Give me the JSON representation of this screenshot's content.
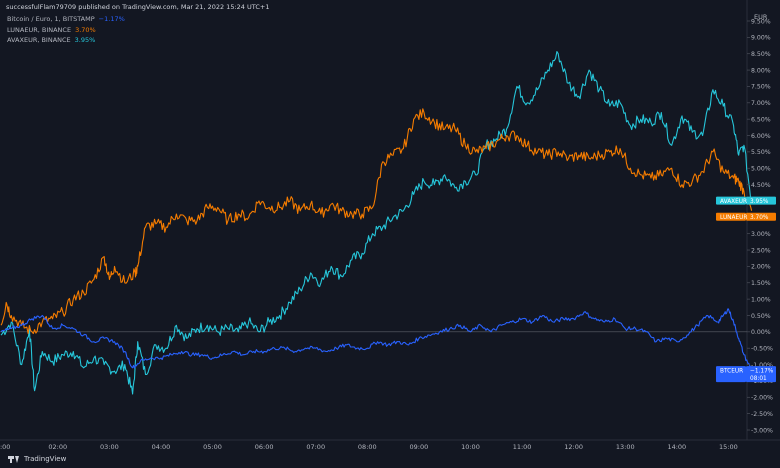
{
  "header": {
    "text": "successfulFlam79709 published on TradingView.com, Mar 21, 2022 15:24 UTC+1"
  },
  "legend": [
    {
      "label": "Bitcoin / Euro, 1, BITSTAMP",
      "change": "−1.17%",
      "color": "#2962ff"
    },
    {
      "label": "LUNAEUR, BINANCE",
      "change": "3.70%",
      "color": "#f57c00"
    },
    {
      "label": "AVAXEUR, BINANCE",
      "change": "3.95%",
      "color": "#26c6da"
    }
  ],
  "footer": {
    "brand": "TradingView"
  },
  "chart_data": {
    "type": "line",
    "yunit": "percent",
    "ylim": [
      -3.0,
      9.5
    ],
    "currency_label": "EUR",
    "y_ticks": [
      "9.50%",
      "9.00%",
      "8.50%",
      "8.00%",
      "7.50%",
      "7.00%",
      "6.50%",
      "6.00%",
      "5.50%",
      "5.00%",
      "4.50%",
      "4.00%",
      "3.50%",
      "3.00%",
      "2.50%",
      "2.00%",
      "1.50%",
      "1.00%",
      "0.50%",
      "0.00%",
      "-0.50%",
      "-1.00%",
      "-1.50%",
      "-2.00%",
      "-2.50%",
      "-3.00%"
    ],
    "x_ticks": [
      {
        "t": 0.98,
        "label": ":00"
      },
      {
        "t": 2,
        "label": "02:00"
      },
      {
        "t": 3,
        "label": "03:00"
      },
      {
        "t": 4,
        "label": "04:00"
      },
      {
        "t": 5,
        "label": "05:00"
      },
      {
        "t": 6,
        "label": "06:00"
      },
      {
        "t": 7,
        "label": "07:00"
      },
      {
        "t": 8,
        "label": "08:00"
      },
      {
        "t": 9,
        "label": "09:00"
      },
      {
        "t": 10,
        "label": "10:00"
      },
      {
        "t": 11,
        "label": "11:00"
      },
      {
        "t": 12,
        "label": "12:00"
      },
      {
        "t": 13,
        "label": "13:00"
      },
      {
        "t": 14,
        "label": "14:00"
      },
      {
        "t": 15,
        "label": "15:00"
      }
    ],
    "xlim": [
      0.88,
      16.0
    ],
    "series": [
      {
        "name": "AVAXEUR",
        "color": "#26c6da",
        "tag": "AVAXEUR",
        "tag_value": "3.95%",
        "x": [
          0.9,
          1.1,
          1.3,
          1.45,
          1.55,
          1.7,
          1.9,
          2.1,
          2.3,
          2.5,
          2.7,
          2.9,
          3.1,
          3.3,
          3.45,
          3.55,
          3.7,
          3.9,
          4.1,
          4.3,
          4.5,
          4.7,
          4.9,
          5.1,
          5.3,
          5.5,
          5.7,
          5.9,
          6.1,
          6.3,
          6.5,
          6.7,
          6.9,
          7.1,
          7.3,
          7.5,
          7.7,
          7.9,
          8.1,
          8.3,
          8.5,
          8.7,
          8.9,
          9.1,
          9.3,
          9.5,
          9.7,
          9.9,
          10.1,
          10.3,
          10.5,
          10.7,
          10.9,
          11.1,
          11.3,
          11.5,
          11.7,
          11.9,
          12.1,
          12.3,
          12.5,
          12.7,
          12.9,
          13.1,
          13.3,
          13.5,
          13.7,
          13.9,
          14.1,
          14.3,
          14.5,
          14.7,
          14.9,
          15.1,
          15.2,
          15.3,
          15.45
        ],
        "y": [
          -0.1,
          0.3,
          -1.0,
          0.1,
          -1.8,
          -0.6,
          -0.9,
          -0.7,
          -0.6,
          -1.1,
          -0.8,
          -1.0,
          -1.2,
          -1.0,
          -1.9,
          -0.3,
          -1.3,
          -0.4,
          -0.5,
          0.2,
          -0.2,
          0.1,
          0.2,
          0.0,
          0.1,
          0.0,
          0.3,
          0.0,
          0.3,
          0.5,
          0.9,
          1.3,
          1.8,
          1.5,
          2.0,
          1.7,
          2.2,
          2.4,
          3.0,
          3.2,
          3.5,
          3.7,
          4.2,
          4.6,
          4.5,
          4.8,
          4.4,
          4.6,
          4.8,
          5.7,
          5.9,
          6.2,
          7.5,
          7.0,
          7.4,
          8.0,
          8.5,
          7.6,
          7.2,
          8.0,
          7.4,
          6.9,
          7.0,
          6.3,
          6.5,
          6.4,
          6.7,
          5.7,
          6.6,
          6.1,
          6.0,
          7.4,
          6.9,
          6.3,
          5.4,
          5.7,
          3.95
        ]
      },
      {
        "name": "LUNAEUR",
        "color": "#f57c00",
        "tag": "LUNAEUR",
        "tag_value": "3.70%",
        "x": [
          0.9,
          1.0,
          1.1,
          1.3,
          1.5,
          1.7,
          1.9,
          2.1,
          2.3,
          2.5,
          2.7,
          2.9,
          3.0,
          3.1,
          3.3,
          3.5,
          3.55,
          3.7,
          3.9,
          4.1,
          4.3,
          4.5,
          4.7,
          4.9,
          5.1,
          5.3,
          5.5,
          5.7,
          5.9,
          6.1,
          6.3,
          6.5,
          6.7,
          6.9,
          7.1,
          7.3,
          7.5,
          7.7,
          7.9,
          8.1,
          8.3,
          8.5,
          8.7,
          8.9,
          9.1,
          9.3,
          9.5,
          9.7,
          9.9,
          10.1,
          10.3,
          10.5,
          10.7,
          10.9,
          11.1,
          11.3,
          11.5,
          11.7,
          11.9,
          12.1,
          12.3,
          12.5,
          12.7,
          12.9,
          13.1,
          13.3,
          13.5,
          13.7,
          13.9,
          14.1,
          14.3,
          14.5,
          14.7,
          14.9,
          15.1,
          15.2,
          15.3,
          15.45
        ],
        "y": [
          0.2,
          0.9,
          0.5,
          0.2,
          0.0,
          0.3,
          0.4,
          0.6,
          1.0,
          1.2,
          1.6,
          2.3,
          1.6,
          2.0,
          1.5,
          1.8,
          2.0,
          3.2,
          3.3,
          3.2,
          3.6,
          3.4,
          3.4,
          3.8,
          3.8,
          3.4,
          3.6,
          3.5,
          4.0,
          3.8,
          3.8,
          4.0,
          3.7,
          3.9,
          3.6,
          3.9,
          3.7,
          3.6,
          3.6,
          3.8,
          5.2,
          5.4,
          5.6,
          6.5,
          6.7,
          6.4,
          6.2,
          6.2,
          5.7,
          5.5,
          5.6,
          5.8,
          6.0,
          6.0,
          5.7,
          5.5,
          5.4,
          5.5,
          5.3,
          5.4,
          5.3,
          5.4,
          5.5,
          5.6,
          5.0,
          4.8,
          4.7,
          4.8,
          5.0,
          4.5,
          4.6,
          4.9,
          5.5,
          4.9,
          4.7,
          4.6,
          4.3,
          3.7
        ]
      },
      {
        "name": "BTCEUR",
        "color": "#2962ff",
        "tag": "BTCEUR",
        "tag_value": "−1.17%",
        "tag_sub": "08:01",
        "x": [
          0.9,
          1.1,
          1.3,
          1.5,
          1.7,
          1.9,
          2.1,
          2.3,
          2.5,
          2.7,
          2.9,
          3.1,
          3.3,
          3.45,
          3.6,
          3.8,
          4.0,
          4.2,
          4.4,
          4.6,
          4.8,
          5.0,
          5.2,
          5.4,
          5.6,
          5.8,
          6.0,
          6.2,
          6.4,
          6.6,
          6.8,
          7.0,
          7.2,
          7.4,
          7.6,
          7.8,
          8.0,
          8.2,
          8.4,
          8.6,
          8.8,
          9.0,
          9.2,
          9.4,
          9.6,
          9.8,
          10.0,
          10.2,
          10.4,
          10.6,
          10.8,
          11.0,
          11.2,
          11.4,
          11.6,
          11.8,
          12.0,
          12.2,
          12.4,
          12.6,
          12.8,
          13.0,
          13.2,
          13.4,
          13.6,
          13.8,
          14.0,
          14.2,
          14.4,
          14.6,
          14.8,
          14.9,
          15.0,
          15.1,
          15.2,
          15.3,
          15.45
        ],
        "y": [
          0.0,
          0.1,
          0.2,
          0.4,
          0.5,
          0.1,
          0.2,
          0.1,
          -0.1,
          -0.3,
          -0.2,
          -0.3,
          -0.6,
          -1.1,
          -0.9,
          -0.8,
          -0.8,
          -0.7,
          -0.6,
          -0.7,
          -0.7,
          -0.8,
          -0.7,
          -0.6,
          -0.7,
          -0.6,
          -0.6,
          -0.5,
          -0.5,
          -0.6,
          -0.5,
          -0.5,
          -0.6,
          -0.5,
          -0.4,
          -0.5,
          -0.5,
          -0.3,
          -0.4,
          -0.3,
          -0.4,
          -0.2,
          -0.1,
          0.0,
          0.1,
          0.2,
          0.0,
          0.2,
          0.0,
          0.2,
          0.3,
          0.4,
          0.3,
          0.5,
          0.3,
          0.4,
          0.4,
          0.6,
          0.4,
          0.3,
          0.4,
          0.1,
          0.1,
          0.0,
          -0.3,
          -0.2,
          -0.3,
          -0.1,
          0.2,
          0.5,
          0.3,
          0.5,
          0.7,
          0.3,
          -0.2,
          -0.7,
          -1.17
        ]
      }
    ]
  }
}
